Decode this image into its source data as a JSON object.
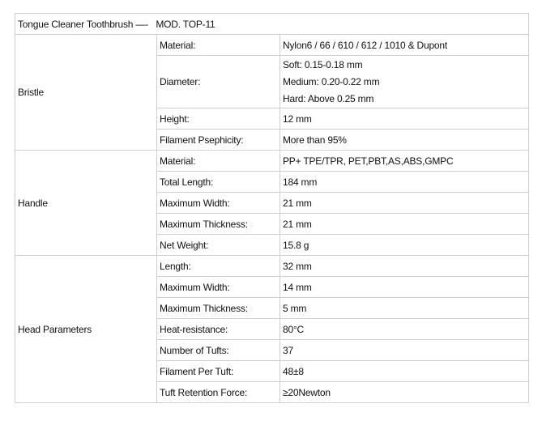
{
  "title": "Tongue Cleaner Toothbrush —-   MOD. TOP-11",
  "groups": [
    {
      "name": "Bristle",
      "rows": [
        {
          "key": "Material:",
          "value": [
            "Nylon6 / 66 / 610 / 612 / 1010 & Dupont"
          ]
        },
        {
          "key": "Diameter:",
          "value": [
            "Soft: 0.15-0.18 mm",
            "Medium: 0.20-0.22 mm",
            "Hard: Above 0.25 mm"
          ]
        },
        {
          "key": "Height:",
          "value": [
            "12 mm"
          ]
        },
        {
          "key": "Filament Psephicity:",
          "value": [
            "More than 95%"
          ]
        }
      ]
    },
    {
      "name": "Handle",
      "rows": [
        {
          "key": "Material:",
          "value": [
            "PP+ TPE/TPR, PET,PBT,AS,ABS,GMPC"
          ]
        },
        {
          "key": "Total Length:",
          "value": [
            "184 mm"
          ]
        },
        {
          "key": "Maximum Width:",
          "value": [
            "21 mm"
          ]
        },
        {
          "key": "Maximum Thickness:",
          "value": [
            "21 mm"
          ]
        },
        {
          "key": "Net Weight:",
          "value": [
            "15.8 g"
          ]
        }
      ]
    },
    {
      "name": "Head Parameters",
      "rows": [
        {
          "key": "Length:",
          "value": [
            "32 mm"
          ]
        },
        {
          "key": "Maximum Width:",
          "value": [
            "14 mm"
          ]
        },
        {
          "key": "Maximum Thickness:",
          "value": [
            "5 mm"
          ]
        },
        {
          "key": "Heat-resistance:",
          "value": [
            "80°C"
          ]
        },
        {
          "key": "Number of Tufts:",
          "value": [
            "37"
          ]
        },
        {
          "key": "Filament Per Tuft:",
          "value": [
            "48±8"
          ]
        },
        {
          "key": "Tuft Retention Force:",
          "value": [
            "≥20Newton"
          ]
        }
      ]
    }
  ]
}
